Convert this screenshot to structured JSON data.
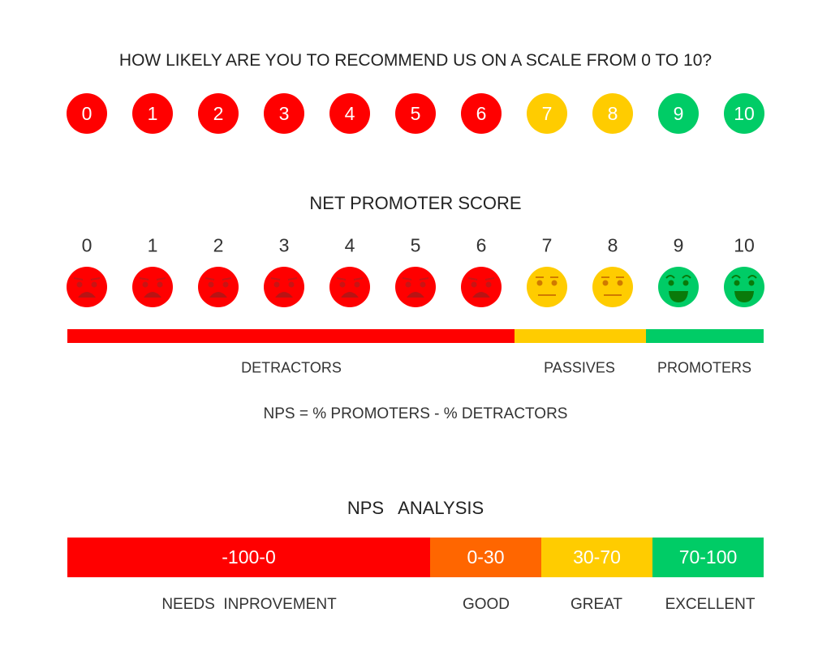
{
  "question": "HOW LIKELY ARE YOU TO RECOMMEND US ON A SCALE FROM 0 TO 10?",
  "scale": [
    "0",
    "1",
    "2",
    "3",
    "4",
    "5",
    "6",
    "7",
    "8",
    "9",
    "10"
  ],
  "nps_title": "NET PROMOTER SCORE",
  "faces": [
    {
      "score": "0",
      "mood": "angry-face-icon",
      "group": "detractor"
    },
    {
      "score": "1",
      "mood": "angry-face-icon",
      "group": "detractor"
    },
    {
      "score": "2",
      "mood": "angry-face-icon",
      "group": "detractor"
    },
    {
      "score": "3",
      "mood": "angry-face-icon",
      "group": "detractor"
    },
    {
      "score": "4",
      "mood": "angry-face-icon",
      "group": "detractor"
    },
    {
      "score": "5",
      "mood": "angry-face-icon",
      "group": "detractor"
    },
    {
      "score": "6",
      "mood": "angry-face-icon",
      "group": "detractor"
    },
    {
      "score": "7",
      "mood": "neutral-face-icon",
      "group": "passive"
    },
    {
      "score": "8",
      "mood": "neutral-face-icon",
      "group": "passive"
    },
    {
      "score": "9",
      "mood": "happy-face-icon",
      "group": "promoter"
    },
    {
      "score": "10",
      "mood": "happy-face-icon",
      "group": "promoter"
    }
  ],
  "groups": {
    "detractor": "DETRACTORS",
    "passive": "PASSIVES",
    "promoter": "PROMOTERS"
  },
  "formula": "NPS = % PROMOTERS - % DETRACTORS",
  "analysis_title": "NPS   ANALYSIS",
  "analysis": [
    {
      "range": "-100-0",
      "label": "NEEDS  INPROVEMENT",
      "color": "#ff0000"
    },
    {
      "range": "0-30",
      "label": "GOOD",
      "color": "#ff6600"
    },
    {
      "range": "30-70",
      "label": "GREAT",
      "color": "#ffcc00"
    },
    {
      "range": "70-100",
      "label": "EXCELLENT",
      "color": "#00cc66"
    }
  ],
  "colors": {
    "detractor": "#ff0000",
    "passive": "#ffcc00",
    "promoter": "#00cc66"
  }
}
